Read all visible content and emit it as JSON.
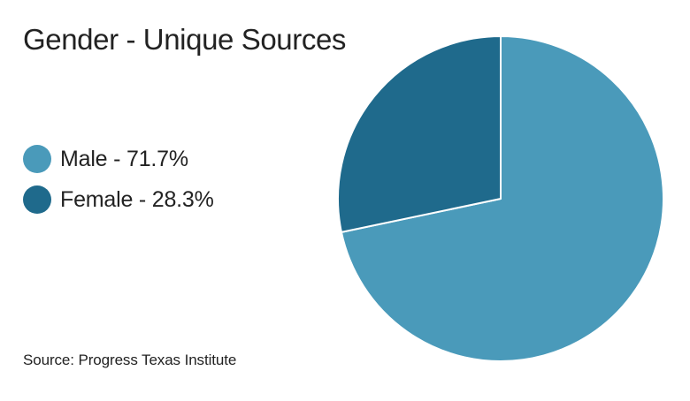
{
  "chart_data": {
    "type": "pie",
    "title": "Gender - Unique Sources",
    "series": [
      {
        "name": "Male",
        "value": 71.7,
        "label": "Male - 71.7%",
        "color": "#4a9aba"
      },
      {
        "name": "Female",
        "value": 28.3,
        "label": "Female - 28.3%",
        "color": "#1f6a8c"
      }
    ],
    "legend_position": "left",
    "start_angle_deg": 0,
    "direction": "clockwise",
    "slice_border_color": "#ffffff",
    "source": "Source: Progress Texas Institute"
  }
}
